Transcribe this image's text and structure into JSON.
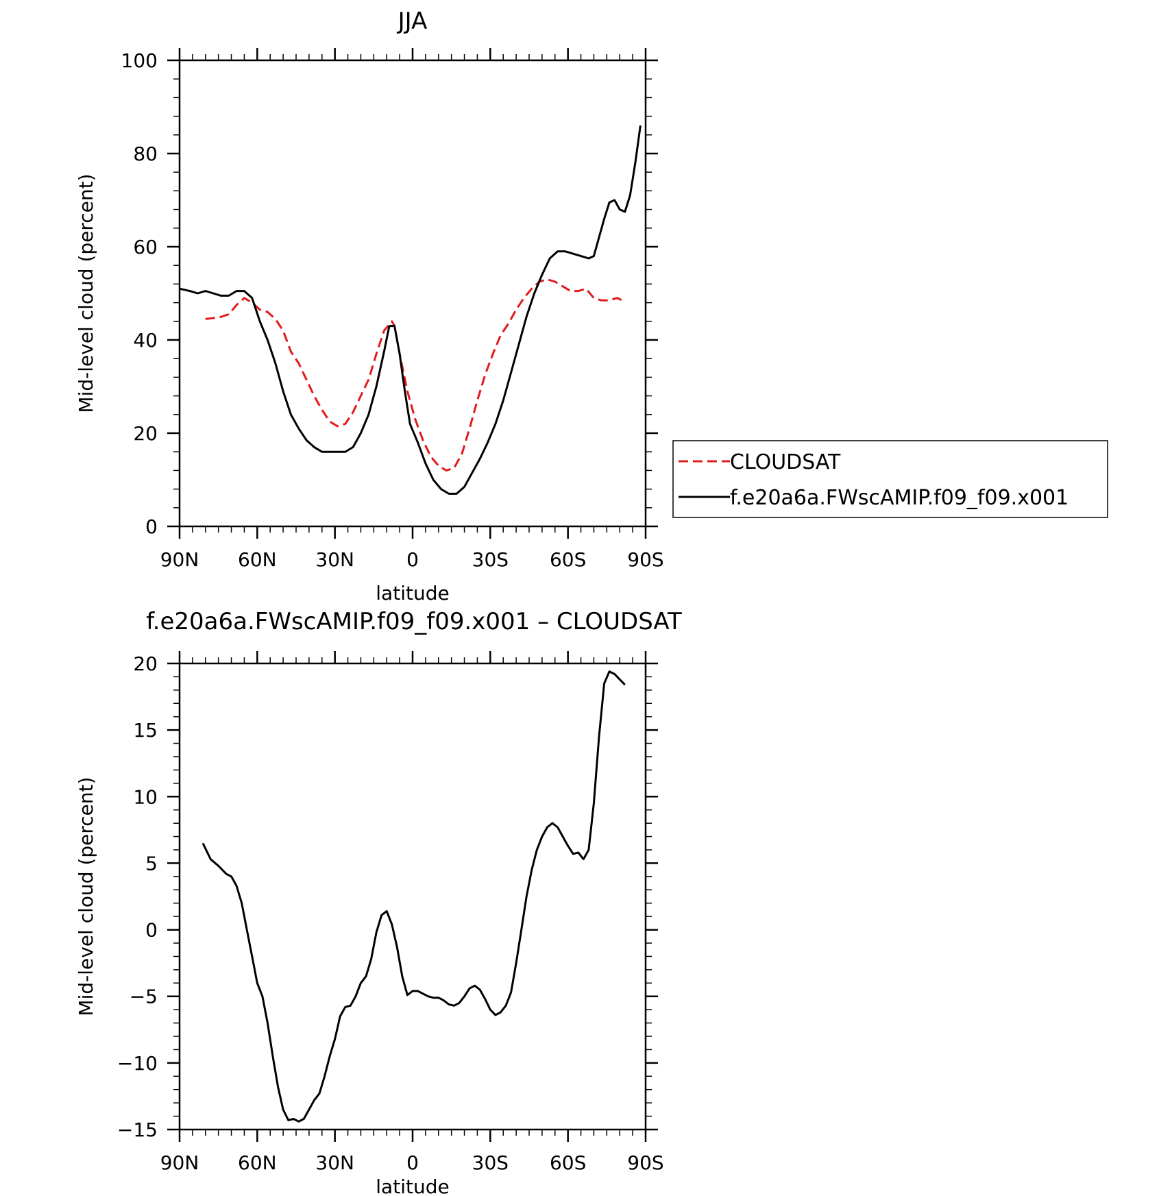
{
  "chart_data": [
    {
      "type": "line",
      "title": "JJA",
      "xlabel": "latitude",
      "ylabel": "Mid-level cloud (percent)",
      "xlim": [
        90,
        -90
      ],
      "ylim": [
        0,
        100
      ],
      "x_ticks": [
        90,
        60,
        30,
        0,
        -30,
        -60,
        -90
      ],
      "x_tick_labels": [
        "90N",
        "60N",
        "30N",
        "0",
        "30S",
        "60S",
        "90S"
      ],
      "y_ticks": [
        0,
        20,
        40,
        60,
        80,
        100
      ],
      "y_tick_labels": [
        "0",
        "20",
        "40",
        "60",
        "80",
        "100"
      ],
      "legend_position": "right",
      "series": [
        {
          "name": "CLOUDSAT",
          "color": "#e31a1c",
          "dash": "dashed",
          "x": [
            80,
            75,
            71,
            68,
            65,
            62,
            59,
            56,
            53,
            50,
            47,
            44,
            41,
            38,
            35,
            32,
            29,
            26,
            23,
            20,
            17,
            14,
            11,
            8,
            7,
            5,
            2,
            -1,
            -4,
            -7,
            -10,
            -13,
            -16,
            -19,
            -22,
            -25,
            -28,
            -31,
            -34,
            -37,
            -40,
            -43,
            -46,
            -49,
            -52,
            -55,
            -58,
            -61,
            -64,
            -67,
            -70,
            -73,
            -76,
            -79,
            -81
          ],
          "values": [
            44.5,
            44.8,
            45.5,
            47.5,
            49,
            48,
            46.5,
            46,
            44.5,
            42,
            37.5,
            35,
            31.5,
            28,
            25,
            22.5,
            21.5,
            22,
            24.5,
            28,
            31.5,
            37,
            42,
            44,
            43,
            37,
            29,
            23,
            18.5,
            15,
            13,
            12,
            12.5,
            15.5,
            21,
            27,
            32.5,
            37,
            41,
            43.5,
            46.5,
            49,
            51,
            52.5,
            53,
            52.5,
            51.5,
            50.5,
            50.5,
            51,
            49,
            48.5,
            48.5,
            49,
            48.5
          ]
        },
        {
          "name": "f.e20a6a.FWscAMIP.f09_f09.x001",
          "color": "#000000",
          "dash": "solid",
          "x": [
            90,
            86,
            83,
            80,
            77,
            74,
            71,
            68,
            65,
            62,
            59,
            56,
            53,
            50,
            47,
            44,
            41,
            38,
            35,
            32,
            29,
            26,
            23,
            20,
            17,
            14,
            11,
            9,
            7,
            5,
            3,
            1,
            -2,
            -5,
            -8,
            -11,
            -14,
            -17,
            -20,
            -23,
            -26,
            -29,
            -32,
            -35,
            -38,
            -41,
            -44,
            -47,
            -50,
            -53,
            -56,
            -59,
            -62,
            -65,
            -68,
            -70,
            -72,
            -74,
            -76,
            -78,
            -80,
            -82,
            -84,
            -86,
            -88
          ],
          "values": [
            51,
            50.5,
            50,
            50.5,
            50,
            49.5,
            49.5,
            50.5,
            50.5,
            49,
            44,
            40,
            35,
            29,
            24,
            21,
            18.5,
            17,
            16,
            16,
            16,
            16,
            17,
            20,
            24,
            30,
            37.5,
            43,
            43,
            37,
            29,
            22,
            18,
            13.5,
            10,
            8,
            7,
            7,
            8.5,
            11.5,
            14.5,
            18,
            22,
            27,
            33,
            39,
            45,
            50,
            54,
            57.5,
            59,
            59,
            58.5,
            58,
            57.5,
            58,
            62,
            66,
            69.5,
            70,
            68,
            67.5,
            71,
            78,
            86
          ]
        }
      ]
    },
    {
      "type": "line",
      "title": "f.e20a6a.FWscAMIP.f09_f09.x001 – CLOUDSAT",
      "xlabel": "latitude",
      "ylabel": "Mid-level cloud (percent)",
      "xlim": [
        90,
        -90
      ],
      "ylim": [
        -15,
        20
      ],
      "x_ticks": [
        90,
        60,
        30,
        0,
        -30,
        -60,
        -90
      ],
      "x_tick_labels": [
        "90N",
        "60N",
        "30N",
        "0",
        "30S",
        "60S",
        "90S"
      ],
      "y_ticks": [
        -15,
        -10,
        -5,
        0,
        5,
        10,
        15,
        20
      ],
      "y_tick_labels": [
        "−15",
        "−10",
        "−5",
        "0",
        "5",
        "10",
        "15",
        "20"
      ],
      "series": [
        {
          "color": "#000000",
          "dash": "solid",
          "x": [
            81,
            78,
            75,
            72,
            70,
            68,
            66,
            64,
            62,
            60,
            58,
            56,
            54,
            52,
            50,
            48,
            46,
            44,
            42,
            40,
            38,
            36,
            34,
            32,
            30,
            28,
            26,
            24,
            22,
            20,
            18,
            16,
            14,
            12,
            10,
            8,
            6,
            4,
            2,
            0,
            -2,
            -4,
            -6,
            -8,
            -10,
            -12,
            -14,
            -16,
            -18,
            -20,
            -22,
            -24,
            -26,
            -28,
            -30,
            -32,
            -34,
            -36,
            -38,
            -40,
            -42,
            -44,
            -46,
            -48,
            -50,
            -52,
            -54,
            -56,
            -58,
            -60,
            -62,
            -64,
            -66,
            -68,
            -70,
            -72,
            -74,
            -76,
            -78,
            -80,
            -82
          ],
          "values": [
            6.5,
            5.3,
            4.8,
            4.2,
            4.0,
            3.3,
            2.0,
            0.0,
            -2.0,
            -4.0,
            -5.0,
            -7.0,
            -9.5,
            -11.8,
            -13.5,
            -14.3,
            -14.2,
            -14.4,
            -14.2,
            -13.5,
            -12.8,
            -12.3,
            -11.0,
            -9.5,
            -8.2,
            -6.5,
            -5.8,
            -5.7,
            -5.0,
            -4.0,
            -3.5,
            -2.2,
            -0.2,
            1.1,
            1.4,
            0.4,
            -1.3,
            -3.5,
            -4.9,
            -4.6,
            -4.6,
            -4.8,
            -5.0,
            -5.1,
            -5.1,
            -5.3,
            -5.6,
            -5.7,
            -5.5,
            -5.0,
            -4.4,
            -4.2,
            -4.5,
            -5.2,
            -6.0,
            -6.4,
            -6.2,
            -5.7,
            -4.7,
            -2.5,
            0.0,
            2.5,
            4.5,
            6.0,
            7.0,
            7.7,
            8.0,
            7.7,
            7.0,
            6.3,
            5.7,
            5.8,
            5.3,
            6.0,
            9.5,
            14.5,
            18.5,
            19.4,
            19.2,
            18.8,
            18.4
          ]
        }
      ]
    }
  ]
}
